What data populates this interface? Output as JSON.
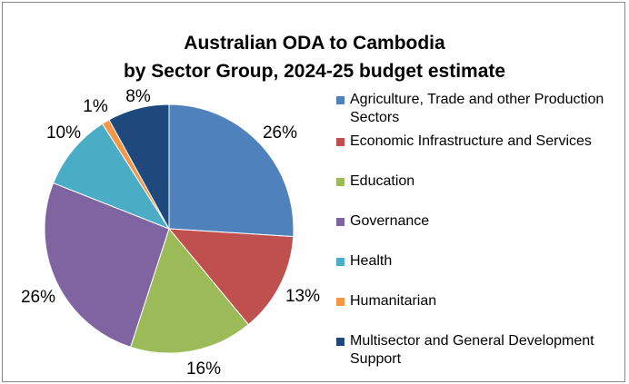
{
  "chart_data": {
    "type": "pie",
    "title": [
      "Australian ODA to Cambodia",
      "by Sector Group, 2024-25 budget estimate"
    ],
    "legend_position": "right",
    "slices": [
      {
        "name": "Agriculture, Trade and other Production Sectors",
        "value": 26,
        "label": "26%",
        "color": "#4F81BD"
      },
      {
        "name": "Economic Infrastructure and Services",
        "value": 13,
        "label": "13%",
        "color": "#C0504D"
      },
      {
        "name": "Education",
        "value": 16,
        "label": "16%",
        "color": "#9BBB59"
      },
      {
        "name": "Governance",
        "value": 26,
        "label": "26%",
        "color": "#8064A2"
      },
      {
        "name": "Health",
        "value": 10,
        "label": "10%",
        "color": "#4BACC6"
      },
      {
        "name": "Humanitarian",
        "value": 1,
        "label": "1%",
        "color": "#F79646"
      },
      {
        "name": "Multisector and General Development Support",
        "value": 8,
        "label": "8%",
        "color": "#1F497D"
      }
    ]
  }
}
